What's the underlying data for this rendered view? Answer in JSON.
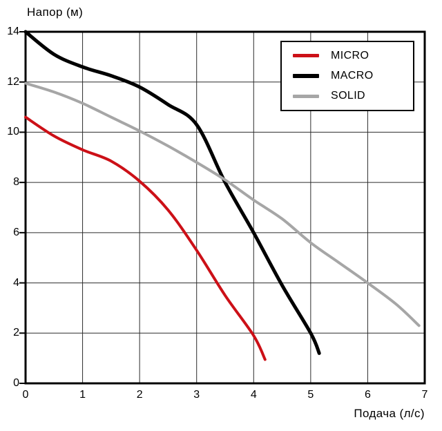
{
  "chart_data": {
    "type": "line",
    "title": "",
    "ylabel": "Напор (м)",
    "xlabel": "Подача (л/с)",
    "xlim": [
      0,
      7
    ],
    "ylim": [
      0,
      14
    ],
    "x_ticks": [
      0,
      1,
      2,
      3,
      4,
      5,
      6,
      7
    ],
    "y_ticks": [
      0,
      2,
      4,
      6,
      8,
      10,
      12,
      14
    ],
    "grid": "on",
    "legend_position": "top-right",
    "series": [
      {
        "name": "MICRO",
        "color": "#cc1017",
        "width": 4,
        "points": [
          [
            0,
            10.6
          ],
          [
            0.5,
            9.85
          ],
          [
            1,
            9.3
          ],
          [
            1.5,
            8.85
          ],
          [
            2,
            8.05
          ],
          [
            2.5,
            6.9
          ],
          [
            3,
            5.3
          ],
          [
            3.5,
            3.5
          ],
          [
            4,
            1.9
          ],
          [
            4.2,
            0.95
          ]
        ]
      },
      {
        "name": "MACRO",
        "color": "#000000",
        "width": 5,
        "points": [
          [
            0,
            14
          ],
          [
            0.5,
            13.1
          ],
          [
            1,
            12.6
          ],
          [
            1.5,
            12.25
          ],
          [
            2,
            11.8
          ],
          [
            2.5,
            11.1
          ],
          [
            3,
            10.3
          ],
          [
            3.5,
            8.0
          ],
          [
            4,
            6.0
          ],
          [
            4.5,
            3.9
          ],
          [
            5,
            2.0
          ],
          [
            5.15,
            1.2
          ]
        ]
      },
      {
        "name": "SOLID",
        "color": "#a6a6a6",
        "width": 4,
        "points": [
          [
            0,
            11.95
          ],
          [
            0.5,
            11.6
          ],
          [
            1,
            11.15
          ],
          [
            1.5,
            10.6
          ],
          [
            2,
            10.05
          ],
          [
            2.5,
            9.45
          ],
          [
            3,
            8.8
          ],
          [
            3.5,
            8.1
          ],
          [
            4,
            7.3
          ],
          [
            4.5,
            6.55
          ],
          [
            5,
            5.6
          ],
          [
            5.5,
            4.8
          ],
          [
            6,
            4.0
          ],
          [
            6.5,
            3.15
          ],
          [
            6.9,
            2.3
          ]
        ]
      }
    ],
    "colors": {
      "background": "#ffffff",
      "grid": "#2b2b2b",
      "axis": "#000000",
      "text": "#000000",
      "legend_border": "#000000"
    }
  }
}
